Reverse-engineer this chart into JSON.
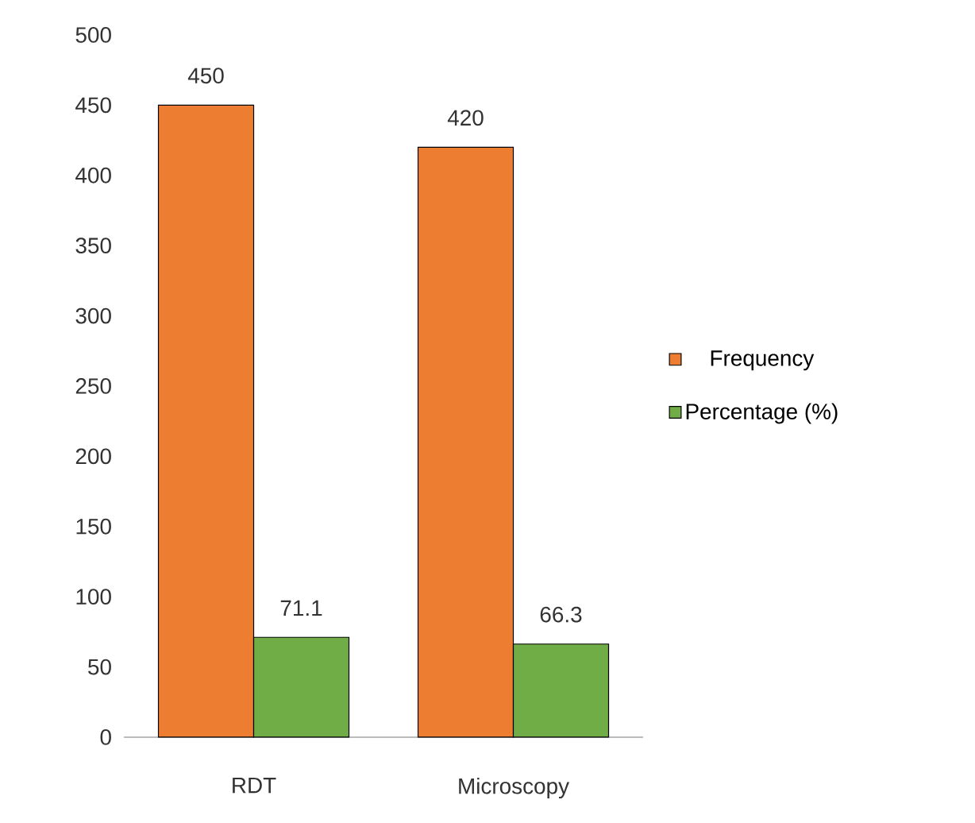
{
  "chart_data": {
    "type": "bar",
    "categories": [
      "RDT",
      "Microscopy"
    ],
    "series": [
      {
        "name": "Frequency",
        "color": "#ed7d31",
        "values": [
          450,
          420
        ]
      },
      {
        "name": "Percentage (%)",
        "color": "#70ad47",
        "values": [
          71.1,
          66.3
        ]
      }
    ],
    "ylim": [
      0,
      500
    ],
    "yticks": [
      0,
      50,
      100,
      150,
      200,
      250,
      300,
      350,
      400,
      450,
      500
    ],
    "data_labels": true,
    "legend": "right",
    "grid": false
  }
}
